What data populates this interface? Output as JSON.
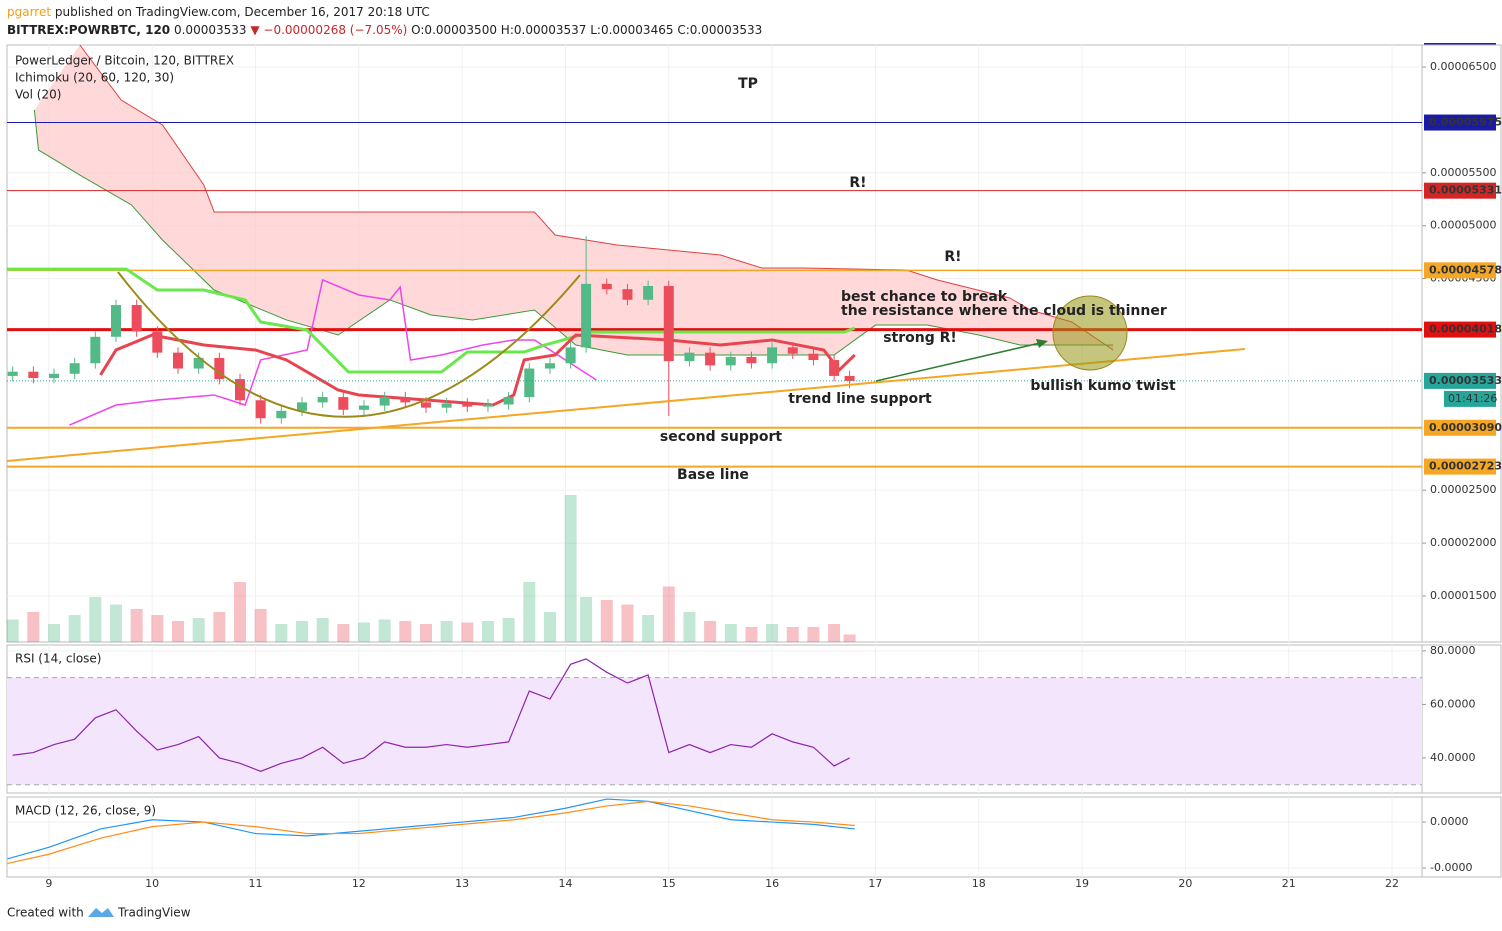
{
  "header": {
    "user": "pgarret",
    "published": "published on TradingView.com, December 16, 2017 20:18 UTC",
    "symbol": "BITTREX:POWRBTC, 120",
    "last": "0.00003533",
    "change": "▼ −0.00000268 (−7.05%)",
    "open": "O:0.00003500",
    "high": "H:0.00003537",
    "low": "L:0.00003465",
    "close": "C:0.00003533"
  },
  "annotations": [
    "TP",
    "R!",
    "R!",
    "best chance to break",
    "the resistance where the cloud is thinner",
    "strong R!",
    "trend line support",
    "second support",
    "Base line",
    "bullish kumo twist"
  ],
  "footer": {
    "created": "Created with",
    "brand": "TradingView"
  },
  "chart_data": [
    {
      "type": "candlestick",
      "title": "PowerLedger / Bitcoin, 120, BITTREX",
      "indicators": [
        "Ichimoku (20, 60, 120, 30)",
        "Vol (20)"
      ],
      "up_color": "#53b987",
      "down_color": "#eb4d5c",
      "xlim": [
        8.595,
        22.29
      ],
      "xticks": [
        9,
        10,
        11,
        12,
        13,
        14,
        15,
        16,
        17,
        18,
        19,
        20,
        21,
        22
      ],
      "ylim": [
        1.065e-05,
        6.708e-05
      ],
      "yticks": [
        {
          "value": 6.5e-05,
          "label": "0.00006500"
        },
        {
          "value": 5.5e-05,
          "label": "0.00005500"
        },
        {
          "value": 5e-05,
          "label": "0.00005000"
        },
        {
          "value": 4.5e-05,
          "label": "0.00004500"
        },
        {
          "value": 2.5e-05,
          "label": "0.00002500"
        },
        {
          "value": 2e-05,
          "label": "0.00002000"
        },
        {
          "value": 1.5e-05,
          "label": "0.00001500"
        }
      ],
      "x": [
        8.65,
        8.85,
        9.05,
        9.25,
        9.45,
        9.65,
        9.85,
        10.05,
        10.25,
        10.45,
        10.65,
        10.85,
        11.05,
        11.25,
        11.45,
        11.65,
        11.85,
        12.05,
        12.25,
        12.45,
        12.65,
        12.85,
        13.05,
        13.25,
        13.45,
        13.65,
        13.85,
        14.05,
        14.2,
        14.4,
        14.6,
        14.8,
        15.0,
        15.2,
        15.4,
        15.6,
        15.8,
        16.0,
        16.2,
        16.4,
        16.6,
        16.75
      ],
      "open": [
        3.58e-05,
        3.62e-05,
        3.56e-05,
        3.6e-05,
        3.7e-05,
        3.95e-05,
        4.25e-05,
        4e-05,
        3.8e-05,
        3.65e-05,
        3.75e-05,
        3.55e-05,
        3.35e-05,
        3.18e-05,
        3.25e-05,
        3.33e-05,
        3.38e-05,
        3.26e-05,
        3.3e-05,
        3.38e-05,
        3.33e-05,
        3.28e-05,
        3.32e-05,
        3.29e-05,
        3.31e-05,
        3.38e-05,
        3.65e-05,
        3.7e-05,
        3.85e-05,
        4.45e-05,
        4.4e-05,
        4.3e-05,
        4.43e-05,
        3.72e-05,
        3.8e-05,
        3.68e-05,
        3.76e-05,
        3.7e-05,
        3.85e-05,
        3.79e-05,
        3.73e-05,
        3.58e-05
      ],
      "high": [
        3.67e-05,
        3.67e-05,
        3.65e-05,
        3.75e-05,
        4e-05,
        4.3e-05,
        4.3e-05,
        4.05e-05,
        3.85e-05,
        3.8e-05,
        3.8e-05,
        3.6e-05,
        3.4e-05,
        3.3e-05,
        3.38e-05,
        3.43e-05,
        3.43e-05,
        3.35e-05,
        3.43e-05,
        3.43e-05,
        3.38e-05,
        3.37e-05,
        3.37e-05,
        3.36e-05,
        3.43e-05,
        3.7e-05,
        3.75e-05,
        3.9e-05,
        4.9e-05,
        4.5e-05,
        4.45e-05,
        4.48e-05,
        4.48e-05,
        3.85e-05,
        3.85e-05,
        3.81e-05,
        3.81e-05,
        3.9e-05,
        3.9e-05,
        3.84e-05,
        3.78e-05,
        3.63e-05
      ],
      "low": [
        3.53e-05,
        3.51e-05,
        3.51e-05,
        3.55e-05,
        3.65e-05,
        3.9e-05,
        3.95e-05,
        3.75e-05,
        3.6e-05,
        3.6e-05,
        3.5e-05,
        3.3e-05,
        3.13e-05,
        3.13e-05,
        3.2e-05,
        3.28e-05,
        3.21e-05,
        3.21e-05,
        3.25e-05,
        3.28e-05,
        3.23e-05,
        3.23e-05,
        3.24e-05,
        3.24e-05,
        3.26e-05,
        3.33e-05,
        3.6e-05,
        3.65e-05,
        3.8e-05,
        4.35e-05,
        4.25e-05,
        4.25e-05,
        3.2e-05,
        3.67e-05,
        3.63e-05,
        3.63e-05,
        3.65e-05,
        3.65e-05,
        3.74e-05,
        3.68e-05,
        3.53e-05,
        3.465e-05
      ],
      "close": [
        3.62e-05,
        3.56e-05,
        3.6e-05,
        3.7e-05,
        3.95e-05,
        4.25e-05,
        4e-05,
        3.8e-05,
        3.65e-05,
        3.75e-05,
        3.55e-05,
        3.35e-05,
        3.18e-05,
        3.25e-05,
        3.33e-05,
        3.38e-05,
        3.26e-05,
        3.3e-05,
        3.38e-05,
        3.33e-05,
        3.28e-05,
        3.32e-05,
        3.29e-05,
        3.31e-05,
        3.38e-05,
        3.65e-05,
        3.7e-05,
        3.85e-05,
        4.45e-05,
        4.4e-05,
        4.3e-05,
        4.43e-05,
        3.72e-05,
        3.8e-05,
        3.68e-05,
        3.76e-05,
        3.7e-05,
        3.85e-05,
        3.79e-05,
        3.73e-05,
        3.58e-05,
        3.533e-05
      ],
      "volume": {
        "ylim": [
          0,
          100
        ],
        "values": [
          15,
          20,
          12,
          18,
          30,
          25,
          22,
          18,
          14,
          16,
          20,
          40,
          22,
          12,
          14,
          16,
          12,
          13,
          15,
          14,
          12,
          14,
          13,
          14,
          16,
          40,
          20,
          98,
          30,
          28,
          25,
          18,
          37,
          20,
          14,
          12,
          10,
          12,
          10,
          10,
          12,
          5
        ]
      },
      "cloud": {
        "color": "#ffcccc",
        "upper": {
          "color": "#e04040",
          "x": [
            9.3,
            9.7,
            10.1,
            10.5,
            10.6,
            13.3,
            13.7,
            13.9,
            14.5,
            15.5,
            15.9,
            16.3,
            17.3,
            17.6,
            18.3,
            18.5,
            18.9,
            19.3
          ],
          "values": [
            6.708e-05,
            6.188e-05,
            5.952e-05,
            5.385e-05,
            5.13e-05,
            5.13e-05,
            5.13e-05,
            4.912e-05,
            4.818e-05,
            4.723e-05,
            4.6e-05,
            4.6e-05,
            4.581e-05,
            4.487e-05,
            4.317e-05,
            4.203e-05,
            4.09e-05,
            3.825e-05
          ]
        },
        "lower": {
          "color": "#3a9a3a",
          "x": [
            8.86,
            8.9,
            9.3,
            9.8,
            10.1,
            10.6,
            11.3,
            11.8,
            12.3,
            12.7,
            13.1,
            13.7,
            14.1,
            14.6,
            15.5,
            16.1,
            16.6,
            17.0,
            17.5,
            18.0,
            18.4,
            19.0,
            19.3
          ],
          "values": [
            6.094e-05,
            5.716e-05,
            5.479e-05,
            5.196e-05,
            4.865e-05,
            4.392e-05,
            4.109e-05,
            3.967e-05,
            4.298e-05,
            4.156e-05,
            4.109e-05,
            4.203e-05,
            3.872e-05,
            3.778e-05,
            3.778e-05,
            3.778e-05,
            3.778e-05,
            4.061e-05,
            4.061e-05,
            3.967e-05,
            3.872e-05,
            3.872e-05,
            3.872e-05
          ]
        }
      },
      "lines": [
        {
          "color": "#ee44ee",
          "width": 1.5,
          "x": [
            9.2,
            9.65,
            10.05,
            10.6,
            10.9,
            11.05,
            11.5,
            11.65,
            12.0,
            12.3,
            12.4,
            12.5,
            12.8,
            13.2,
            13.5,
            13.7,
            14.0,
            14.3
          ],
          "values": [
            3.116e-05,
            3.305e-05,
            3.352e-05,
            3.4e-05,
            3.305e-05,
            3.731e-05,
            3.825e-05,
            4.487e-05,
            4.345e-05,
            4.298e-05,
            4.42e-05,
            3.731e-05,
            3.778e-05,
            3.872e-05,
            3.92e-05,
            3.92e-05,
            3.731e-05,
            3.541e-05
          ]
        },
        {
          "color": "#6ae84b",
          "width": 3,
          "x": [
            8.595,
            9.75,
            10.05,
            10.5,
            10.9,
            11.05,
            11.5,
            11.9,
            12.8,
            13.05,
            13.6,
            13.8,
            14.15,
            14.2,
            16.7,
            16.8
          ],
          "values": [
            4.589e-05,
            4.589e-05,
            4.392e-05,
            4.392e-05,
            4.298e-05,
            4.09e-05,
            4.014e-05,
            3.617e-05,
            3.617e-05,
            3.806e-05,
            3.806e-05,
            3.872e-05,
            3.967e-05,
            3.995e-05,
            3.995e-05,
            4.033e-05
          ]
        },
        {
          "color": "#e8444f",
          "width": 3,
          "x": [
            9.5,
            9.65,
            10.0,
            10.5,
            11.0,
            11.3,
            11.8,
            12.0,
            13.3,
            13.5,
            13.6,
            13.9,
            14.1,
            15.0,
            15.5,
            16.0,
            16.5,
            16.65,
            16.8
          ],
          "values": [
            3.589e-05,
            3.825e-05,
            3.967e-05,
            3.872e-05,
            3.825e-05,
            3.731e-05,
            3.447e-05,
            3.4e-05,
            3.305e-05,
            3.4e-05,
            3.731e-05,
            3.778e-05,
            3.967e-05,
            3.92e-05,
            3.872e-05,
            3.92e-05,
            3.825e-05,
            3.636e-05,
            3.778e-05
          ]
        }
      ],
      "levels": [
        {
          "value": 5.975e-05,
          "label": "0.00005975",
          "color": "#1a1aa6",
          "width": 1
        },
        {
          "value": 5.331e-05,
          "label": "0.00005331",
          "color": "#d42525",
          "width": 1
        },
        {
          "value": 4.578e-05,
          "label": "0.00004578",
          "color": "#f5a623",
          "width": 1.5
        },
        {
          "value": 4.018e-05,
          "label": "0.00004018",
          "color": "#e01010",
          "width": 3
        },
        {
          "value": 3.09e-05,
          "label": "0.00003090",
          "color": "#f5a623",
          "width": 2
        },
        {
          "value": 2.723e-05,
          "label": "0.00002723",
          "color": "#f5a623",
          "width": 2
        }
      ],
      "last": {
        "value": 3.533e-05,
        "label": "0.00003533",
        "countdown": "01:41:26",
        "color": "#26a69a"
      }
    },
    {
      "type": "line",
      "title": "RSI (14, close)",
      "color": "#8e24aa",
      "band": [
        30,
        70
      ],
      "band_color": "#f3e5fb",
      "xlim": [
        8.595,
        22.29
      ],
      "ylim": [
        26.9,
        82.2
      ],
      "yticks": [
        {
          "value": 80,
          "label": "80.0000"
        },
        {
          "value": 60,
          "label": "60.0000"
        },
        {
          "value": 40,
          "label": "40.0000"
        }
      ],
      "x": [
        8.65,
        8.85,
        9.05,
        9.25,
        9.45,
        9.65,
        9.85,
        10.05,
        10.25,
        10.45,
        10.65,
        10.85,
        11.05,
        11.25,
        11.45,
        11.65,
        11.85,
        12.05,
        12.25,
        12.45,
        12.65,
        12.85,
        13.05,
        13.25,
        13.45,
        13.65,
        13.85,
        14.05,
        14.2,
        14.4,
        14.6,
        14.8,
        15.0,
        15.2,
        15.4,
        15.6,
        15.8,
        16.0,
        16.2,
        16.4,
        16.6,
        16.75
      ],
      "values": [
        41,
        42,
        45,
        47,
        55,
        58,
        50,
        43,
        45,
        48,
        40,
        38,
        35,
        38,
        40,
        44,
        38,
        40,
        46,
        44,
        44,
        45,
        44,
        45,
        46,
        65,
        62,
        75,
        77,
        72,
        68,
        71,
        42,
        45,
        42,
        45,
        44,
        49,
        46,
        44,
        37,
        40
      ]
    },
    {
      "type": "line",
      "title": "MACD (12, 26, close, 9)",
      "xlim": [
        8.595,
        22.29
      ],
      "ylim": [
        -2.39e-07,
        1.09e-07
      ],
      "yticks": [
        {
          "value": 0,
          "label": "0.0000"
        },
        {
          "value": -2e-07,
          "label": "-0.0000"
        }
      ],
      "x": [
        8.6,
        9.0,
        9.5,
        10.0,
        10.5,
        11.0,
        11.5,
        12.0,
        12.5,
        13.0,
        13.5,
        14.0,
        14.4,
        14.8,
        15.2,
        15.6,
        16.0,
        16.4,
        16.8
      ],
      "series": [
        {
          "color": "#2196f3",
          "values": [
            -1.6e-07,
            -1.1e-07,
            -3e-08,
            1e-08,
            0,
            -5e-08,
            -6e-08,
            -4e-08,
            -2e-08,
            0,
            2e-08,
            6e-08,
            1e-07,
            9e-08,
            5e-08,
            1e-08,
            0,
            -1e-08,
            -3e-08
          ]
        },
        {
          "color": "#ff8c1a",
          "values": [
            -1.8e-07,
            -1.4e-07,
            -7e-08,
            -2e-08,
            0,
            -2e-08,
            -5e-08,
            -5e-08,
            -3e-08,
            -1e-08,
            1e-08,
            4e-08,
            7e-08,
            9e-08,
            7e-08,
            4e-08,
            1e-08,
            0,
            -1.5e-08
          ]
        }
      ]
    }
  ]
}
